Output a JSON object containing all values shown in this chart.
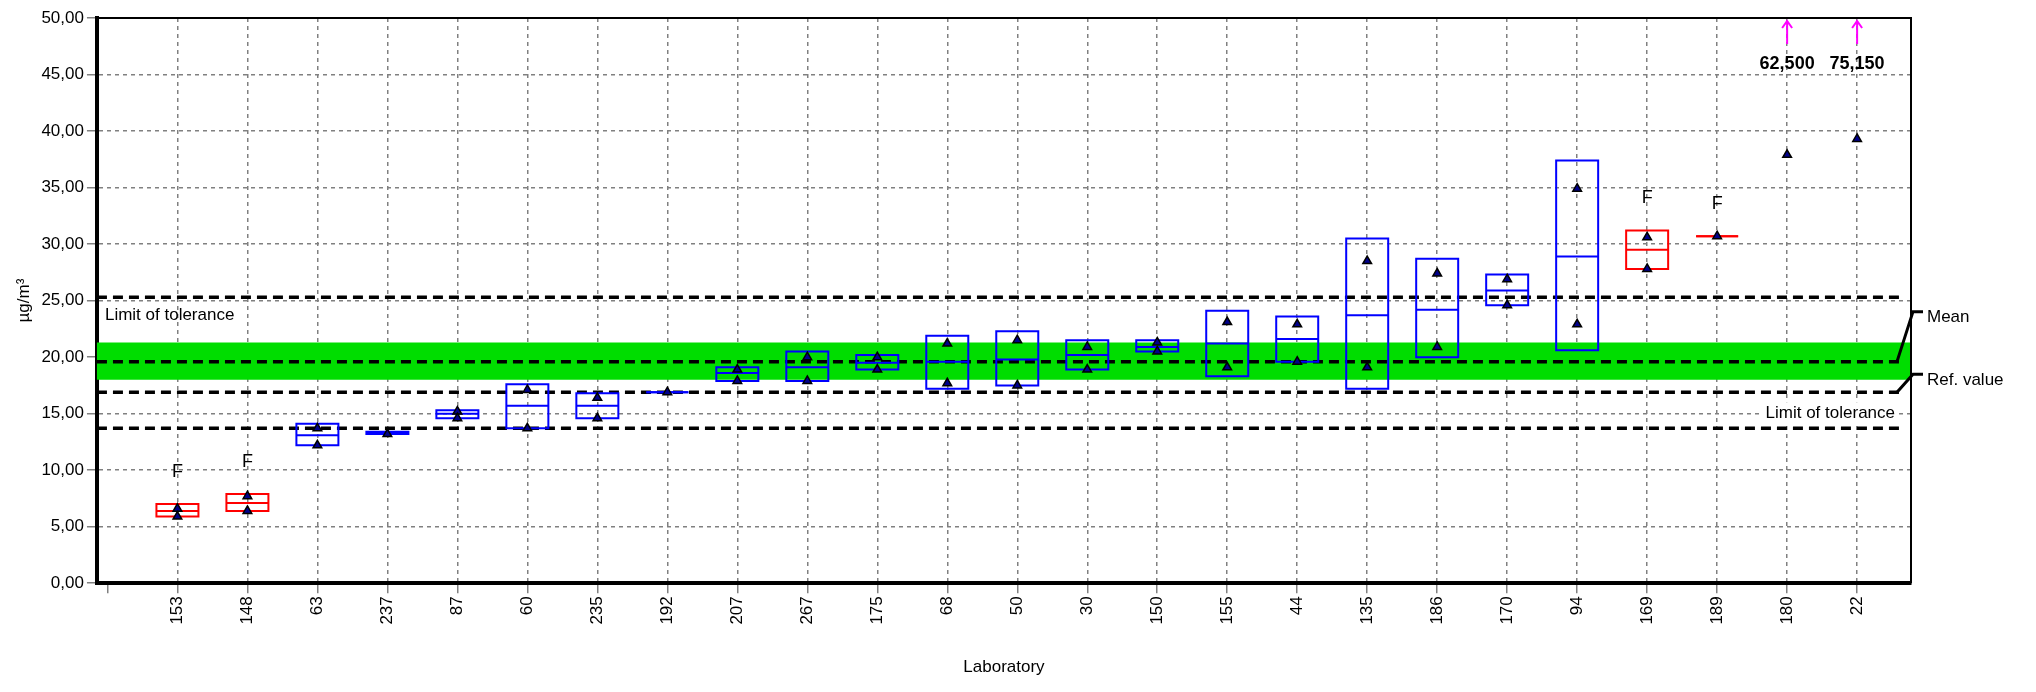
{
  "chart_data": {
    "type": "box",
    "xlabel": "Laboratory",
    "ylabel": "µg/m³",
    "categories": [
      "153",
      "148",
      "63",
      "237",
      "87",
      "60",
      "235",
      "192",
      "207",
      "267",
      "175",
      "68",
      "50",
      "30",
      "150",
      "155",
      "44",
      "135",
      "186",
      "170",
      "94",
      "169",
      "189",
      "180",
      "22"
    ],
    "ylim": [
      0,
      50
    ],
    "yticks": [
      {
        "value": 0,
        "label": "0,00"
      },
      {
        "value": 5,
        "label": "5,00"
      },
      {
        "value": 10,
        "label": "10,00"
      },
      {
        "value": 15,
        "label": "15,00"
      },
      {
        "value": 20,
        "label": "20,00"
      },
      {
        "value": 25,
        "label": "25,00"
      },
      {
        "value": 30,
        "label": "30,00"
      },
      {
        "value": 35,
        "label": "35,00"
      },
      {
        "value": 40,
        "label": "40,00"
      },
      {
        "value": 45,
        "label": "45,00"
      },
      {
        "value": 50,
        "label": "50,00"
      }
    ],
    "grid": true,
    "legend": false,
    "series": [
      {
        "type": "box",
        "colors": [
          "#ff0000",
          "#ff0000",
          "#0000ff",
          "#0000ff",
          "#0000ff",
          "#0000ff",
          "#0000ff",
          "#0000ff",
          "#0000ff",
          "#0000ff",
          "#0000ff",
          "#0000ff",
          "#0000ff",
          "#0000ff",
          "#0000ff",
          "#0000ff",
          "#0000ff",
          "#0000ff",
          "#0000ff",
          "#0000ff",
          "#0000ff",
          "#ff0000",
          "#ff0000",
          null,
          null
        ],
        "boxes": [
          {
            "low": 5.9,
            "q1": 5.9,
            "median": 6.4,
            "q3": 7.0,
            "high": 7.0
          },
          {
            "low": 6.4,
            "q1": 6.4,
            "median": 7.1,
            "q3": 7.9,
            "high": 7.9
          },
          {
            "low": 12.2,
            "q1": 12.2,
            "median": 13.1,
            "q3": 14.1,
            "high": 14.1
          },
          {
            "low": 13.2,
            "q1": 13.2,
            "median": 13.3,
            "q3": 13.4,
            "high": 13.4
          },
          {
            "low": 14.6,
            "q1": 14.6,
            "median": 15.0,
            "q3": 15.3,
            "high": 15.3
          },
          {
            "low": 13.7,
            "q1": 13.7,
            "median": 15.7,
            "q3": 17.6,
            "high": 17.6
          },
          {
            "low": 14.6,
            "q1": 14.6,
            "median": 15.7,
            "q3": 16.8,
            "high": 16.8
          },
          {
            "low": 16.9,
            "q1": 16.9,
            "median": 16.9,
            "q3": 16.9,
            "high": 16.9
          },
          {
            "low": 17.9,
            "q1": 17.9,
            "median": 18.6,
            "q3": 19.1,
            "high": 19.1
          },
          {
            "low": 17.9,
            "q1": 17.9,
            "median": 19.1,
            "q3": 20.5,
            "high": 20.5
          },
          {
            "low": 18.9,
            "q1": 18.9,
            "median": 19.5,
            "q3": 20.2,
            "high": 20.2
          },
          {
            "low": 17.2,
            "q1": 17.2,
            "median": 19.6,
            "q3": 21.9,
            "high": 21.9
          },
          {
            "low": 17.5,
            "q1": 17.5,
            "median": 19.8,
            "q3": 22.3,
            "high": 22.3
          },
          {
            "low": 18.9,
            "q1": 18.9,
            "median": 20.2,
            "q3": 21.5,
            "high": 21.5
          },
          {
            "low": 20.5,
            "q1": 20.5,
            "median": 20.9,
            "q3": 21.5,
            "high": 21.5
          },
          {
            "low": 18.3,
            "q1": 18.3,
            "median": 21.2,
            "q3": 24.1,
            "high": 24.1
          },
          {
            "low": 19.6,
            "q1": 19.6,
            "median": 21.6,
            "q3": 23.6,
            "high": 23.6
          },
          {
            "low": 17.2,
            "q1": 17.2,
            "median": 23.7,
            "q3": 30.5,
            "high": 30.5
          },
          {
            "low": 20.0,
            "q1": 20.0,
            "median": 24.2,
            "q3": 28.7,
            "high": 28.7
          },
          {
            "low": 24.6,
            "q1": 24.6,
            "median": 25.9,
            "q3": 27.3,
            "high": 27.3
          },
          {
            "low": 20.6,
            "q1": 20.6,
            "median": 28.9,
            "q3": 37.4,
            "high": 37.4
          },
          {
            "low": 27.8,
            "q1": 27.8,
            "median": 29.5,
            "q3": 31.2,
            "high": 31.2
          },
          {
            "low": 30.7,
            "q1": 30.7,
            "median": 30.7,
            "q3": 30.7,
            "high": 30.7
          },
          null,
          null
        ]
      },
      {
        "type": "scatter",
        "color": "#00008b",
        "marker": "triangle",
        "x": [
          "153",
          "153",
          "148",
          "148",
          "63",
          "63",
          "237",
          "87",
          "87",
          "60",
          "60",
          "235",
          "235",
          "192",
          "207",
          "207",
          "267",
          "267",
          "175",
          "175",
          "68",
          "68",
          "50",
          "50",
          "30",
          "30",
          "150",
          "150",
          "155",
          "155",
          "44",
          "44",
          "135",
          "135",
          "186",
          "186",
          "170",
          "170",
          "94",
          "94",
          "169",
          "169",
          "189",
          "180",
          "22"
        ],
        "values": [
          6.6,
          5.9,
          7.7,
          6.4,
          13.7,
          12.2,
          13.2,
          15.2,
          14.6,
          17.1,
          13.7,
          16.4,
          14.6,
          16.9,
          18.9,
          17.9,
          20.0,
          17.9,
          20.0,
          18.9,
          21.2,
          17.7,
          21.5,
          17.5,
          20.9,
          18.9,
          21.3,
          20.5,
          23.1,
          19.1,
          22.9,
          19.6,
          28.5,
          19.1,
          27.4,
          20.9,
          26.9,
          24.6,
          34.9,
          22.9,
          30.6,
          27.8,
          30.7,
          37.9,
          39.3
        ]
      }
    ],
    "ref_lines": [
      {
        "axis": "y",
        "value": 25.3,
        "label": "Limit of tolerance",
        "color": "#000000",
        "line_style": "dashed"
      },
      {
        "axis": "y",
        "value": 19.6,
        "label": "Mean",
        "color": "#000000",
        "line_style": "dashed"
      },
      {
        "axis": "y",
        "value": 16.9,
        "label": "Ref. value",
        "color": "#000000",
        "line_style": "dashed"
      },
      {
        "axis": "y",
        "value": 13.7,
        "label": "Limit of tolerance",
        "color": "#000000",
        "line_style": "dashed"
      }
    ],
    "bands": [
      {
        "axis": "y",
        "from": 18.0,
        "to": 21.3,
        "color": "#00dd00"
      }
    ],
    "annotations": [
      {
        "text": "F",
        "x": "153",
        "y": 7.0
      },
      {
        "text": "F",
        "x": "148",
        "y": 7.9
      },
      {
        "text": "F",
        "x": "169",
        "y": 31.2
      },
      {
        "text": "F",
        "x": "189",
        "y": 30.7
      },
      "62,500",
      "75,150"
    ]
  }
}
